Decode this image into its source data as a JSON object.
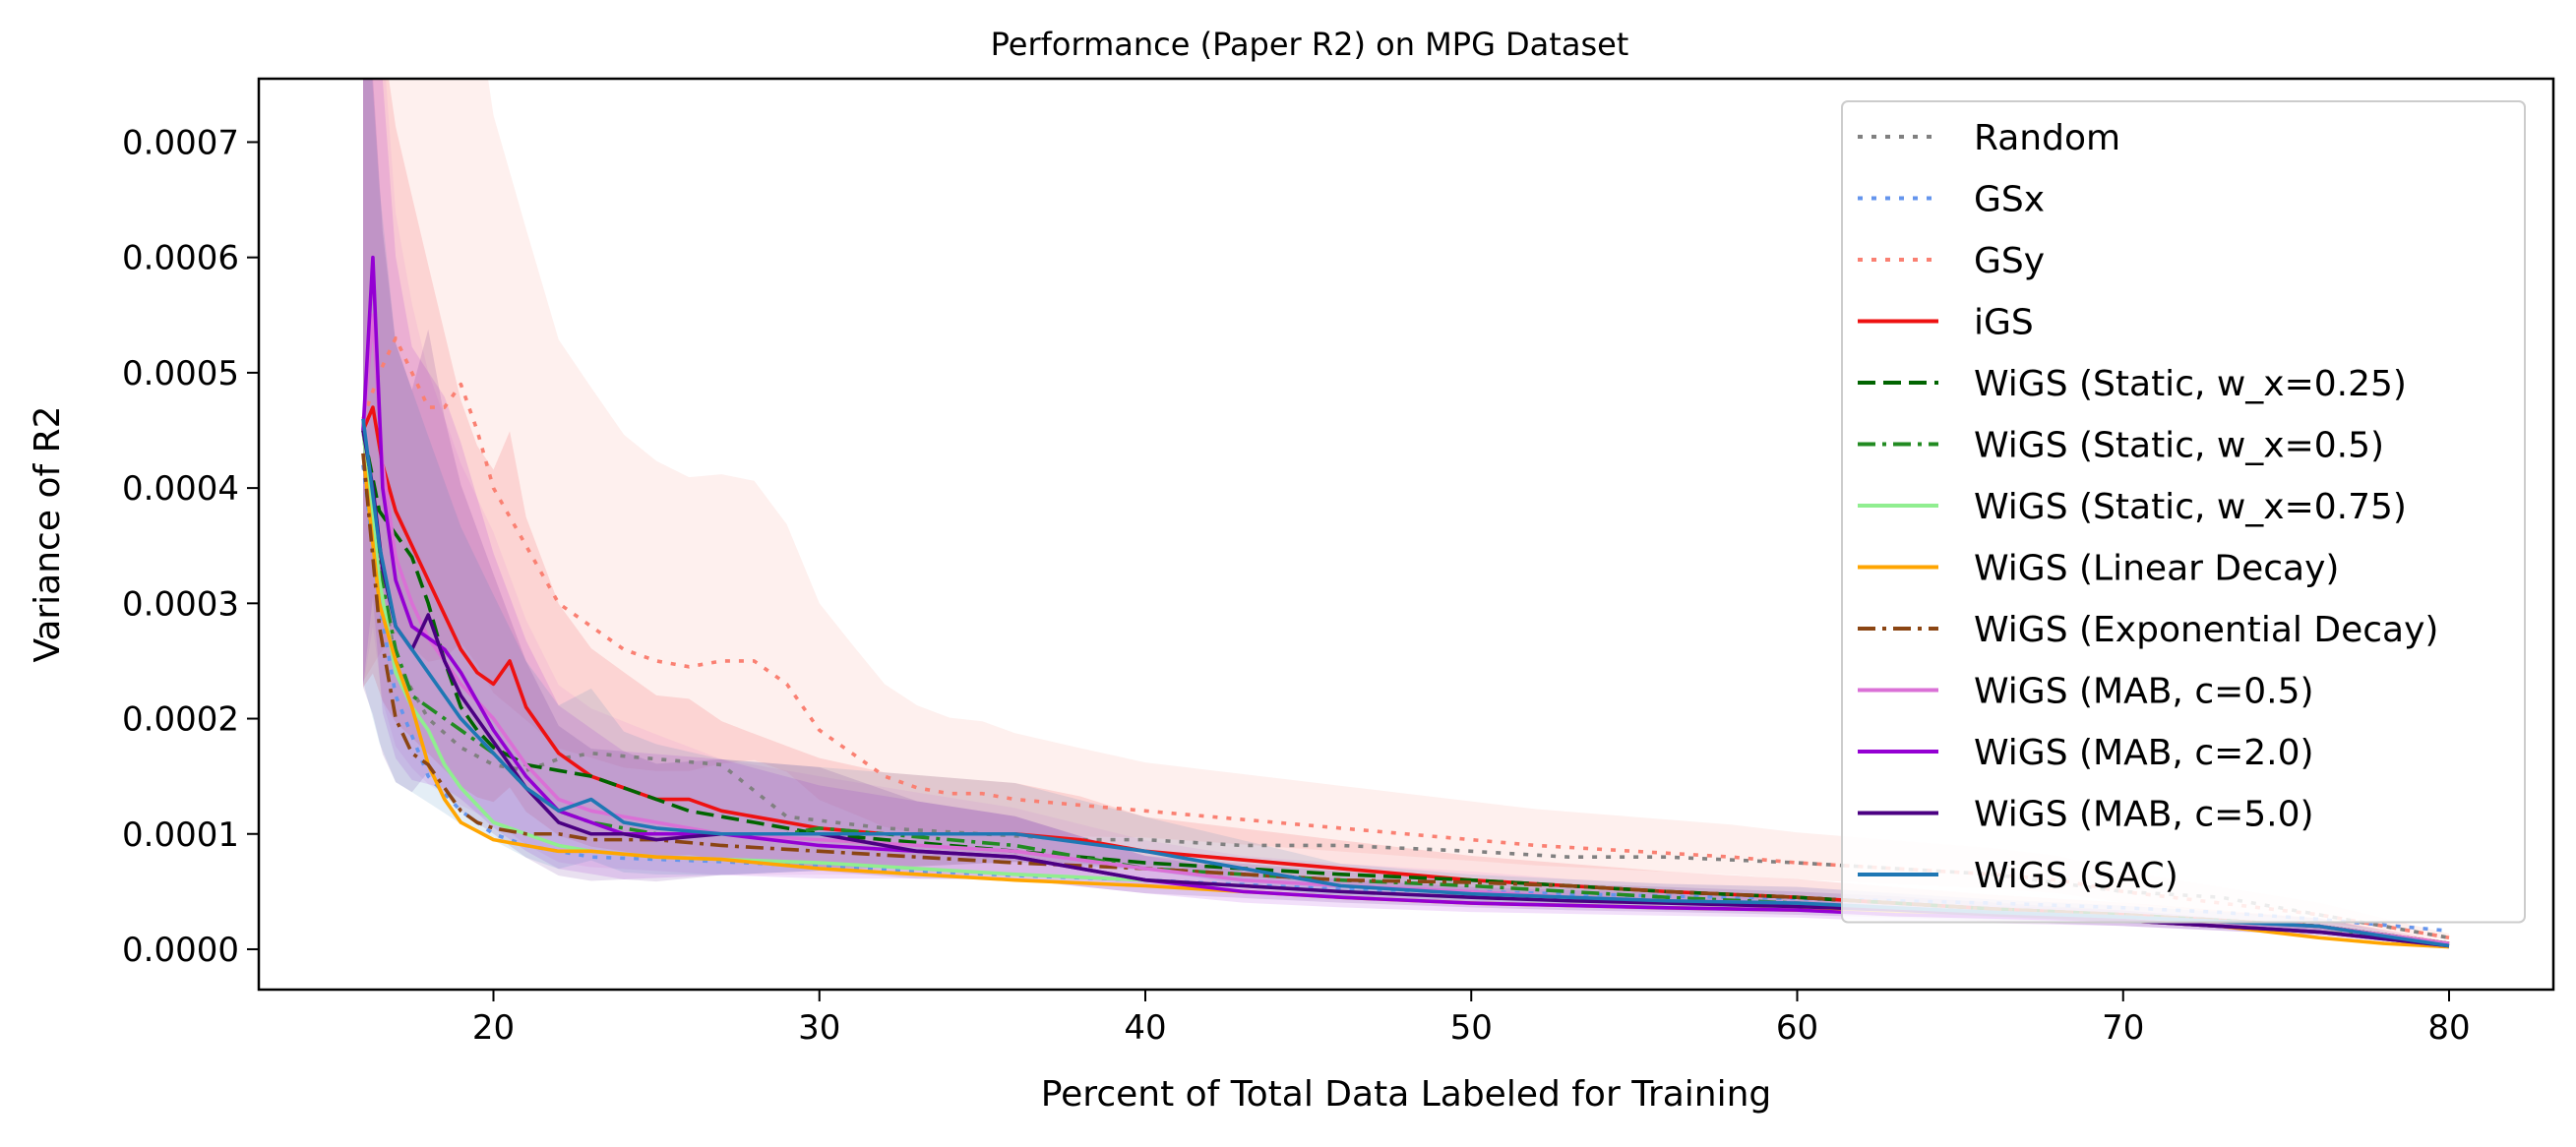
{
  "chart_data": {
    "type": "line",
    "title": "Performance (Paper R2) on MPG Dataset",
    "xlabel": "Percent of Total Data Labeled for Training",
    "ylabel": "Variance of R2",
    "xlim": [
      12.8,
      83.2
    ],
    "ylim": [
      -3.5e-05,
      0.000755
    ],
    "xticks": [
      20,
      30,
      40,
      50,
      60,
      70,
      80
    ],
    "xtick_labels": [
      "20",
      "30",
      "40",
      "50",
      "60",
      "70",
      "80"
    ],
    "yticks": [
      0.0,
      0.0001,
      0.0002,
      0.0003,
      0.0004,
      0.0005,
      0.0006,
      0.0007
    ],
    "ytick_labels": [
      "0.0000",
      "0.0001",
      "0.0002",
      "0.0003",
      "0.0004",
      "0.0005",
      "0.0006",
      "0.0007"
    ],
    "grid": false,
    "legend_position": "top-right",
    "series": [
      {
        "name": "Random",
        "color": "#808080",
        "dash": "dotted",
        "shade": false,
        "x": [
          16,
          16.5,
          17,
          18,
          19,
          20,
          21,
          22,
          23,
          25,
          27,
          29,
          32,
          35,
          38,
          40,
          43,
          46,
          50,
          53,
          56,
          60,
          63,
          66,
          70,
          73,
          76,
          80
        ],
        "y": [
          0.00045,
          0.00033,
          0.00025,
          0.0002,
          0.000175,
          0.00016,
          0.000155,
          0.000165,
          0.00017,
          0.000165,
          0.00016,
          0.000115,
          0.000105,
          0.0001,
          9.5e-05,
          9.5e-05,
          9e-05,
          9e-05,
          8.5e-05,
          8e-05,
          8e-05,
          7.5e-05,
          7e-05,
          6.5e-05,
          5e-05,
          4.5e-05,
          3e-05,
          1e-05
        ]
      },
      {
        "name": "GSx",
        "color": "#6495ed",
        "dash": "dotted",
        "shade": false,
        "x": [
          16,
          16.5,
          17,
          18,
          19,
          20,
          21,
          22,
          23,
          25,
          27,
          30,
          33,
          36,
          40,
          43,
          46,
          50,
          53,
          56,
          60,
          63,
          66,
          70,
          73,
          76,
          80
        ],
        "y": [
          0.00042,
          0.0003,
          0.00022,
          0.00015,
          0.00012,
          0.0001,
          9e-05,
          8.5e-05,
          8e-05,
          7.8e-05,
          7.6e-05,
          7.2e-05,
          6.8e-05,
          6.4e-05,
          6e-05,
          5.6e-05,
          5.2e-05,
          5e-05,
          4.8e-05,
          4.6e-05,
          4.4e-05,
          4.2e-05,
          4e-05,
          3.6e-05,
          3.2e-05,
          2.6e-05,
          1.6e-05
        ]
      },
      {
        "name": "GSy",
        "color": "#fa8072",
        "dash": "dotted",
        "shade": true,
        "x": [
          16,
          16.5,
          17,
          17.5,
          18,
          18.5,
          19,
          19.5,
          20,
          21,
          22,
          23,
          24,
          25,
          26,
          27,
          28,
          29,
          30,
          31,
          32,
          33,
          34,
          35,
          36,
          38,
          40,
          42,
          44,
          46,
          48,
          50,
          52,
          55,
          58,
          60,
          63,
          66,
          68,
          70,
          73,
          76,
          80
        ],
        "y": [
          0.00046,
          0.0005,
          0.00053,
          0.0005,
          0.00047,
          0.00047,
          0.00049,
          0.00045,
          0.0004,
          0.00035,
          0.0003,
          0.00028,
          0.00026,
          0.00025,
          0.000245,
          0.00025,
          0.00025,
          0.00023,
          0.00019,
          0.00017,
          0.00015,
          0.00014,
          0.000135,
          0.000135,
          0.00013,
          0.000125,
          0.00012,
          0.000115,
          0.00011,
          0.000105,
          0.0001,
          9.5e-05,
          9e-05,
          8.5e-05,
          8e-05,
          7.5e-05,
          7e-05,
          6.5e-05,
          6e-05,
          5e-05,
          4e-05,
          3e-05,
          1e-05
        ]
      },
      {
        "name": "iGS",
        "color": "#ee1111",
        "dash": "solid",
        "shade": true,
        "x": [
          16,
          16.3,
          16.6,
          17,
          17.5,
          18,
          18.5,
          19,
          19.5,
          20,
          20.5,
          21,
          22,
          23,
          24,
          25,
          26,
          27,
          28,
          29,
          30,
          32,
          34,
          36,
          38,
          40,
          42,
          44,
          46,
          48,
          50,
          53,
          56,
          60,
          63,
          66,
          70,
          73,
          76,
          80
        ],
        "y": [
          0.00045,
          0.00047,
          0.00042,
          0.00038,
          0.00035,
          0.00032,
          0.00029,
          0.00026,
          0.00024,
          0.00023,
          0.00025,
          0.00021,
          0.00017,
          0.00015,
          0.00014,
          0.00013,
          0.00013,
          0.00012,
          0.000115,
          0.00011,
          0.000105,
          0.0001,
          0.0001,
          0.0001,
          9.5e-05,
          8.5e-05,
          8e-05,
          7.5e-05,
          7e-05,
          6.5e-05,
          6e-05,
          5.5e-05,
          5e-05,
          4.5e-05,
          4e-05,
          3.5e-05,
          3e-05,
          2.5e-05,
          2e-05,
          5e-06
        ]
      },
      {
        "name": "WiGS (Static, w_x=0.25)",
        "color": "#006400",
        "dash": "dashed",
        "shade": false,
        "x": [
          16,
          16.5,
          17,
          17.5,
          18,
          18.5,
          19,
          19.5,
          20,
          21,
          22,
          23,
          24,
          25,
          26,
          27,
          28,
          29,
          30,
          32,
          34,
          36,
          38,
          40,
          43,
          46,
          50,
          53,
          56,
          60,
          63,
          66,
          70,
          73,
          76,
          80
        ],
        "y": [
          0.00045,
          0.00038,
          0.00036,
          0.00034,
          0.0003,
          0.00025,
          0.00021,
          0.00019,
          0.000175,
          0.00016,
          0.000155,
          0.00015,
          0.00014,
          0.00013,
          0.00012,
          0.000115,
          0.00011,
          0.000105,
          0.0001,
          9.5e-05,
          9e-05,
          8.5e-05,
          8e-05,
          7.5e-05,
          7e-05,
          6.5e-05,
          6e-05,
          5.5e-05,
          5e-05,
          4.5e-05,
          4e-05,
          3.5e-05,
          3e-05,
          2.5e-05,
          2e-05,
          5e-06
        ]
      },
      {
        "name": "WiGS (Static, w_x=0.5)",
        "color": "#228b22",
        "dash": "dashdot",
        "shade": false,
        "x": [
          16,
          16.5,
          17,
          17.5,
          18,
          18.5,
          19,
          20,
          21,
          22,
          23,
          25,
          27,
          29,
          30,
          32,
          34,
          36,
          38,
          40,
          43,
          46,
          50,
          53,
          56,
          60,
          63,
          66,
          70,
          73,
          76,
          80
        ],
        "y": [
          0.00045,
          0.00033,
          0.00026,
          0.00022,
          0.00021,
          0.0002,
          0.00019,
          0.00017,
          0.00014,
          0.00012,
          0.00011,
          0.0001,
          0.0001,
          0.0001,
          0.000105,
          0.0001,
          9.5e-05,
          9e-05,
          8e-05,
          7e-05,
          6.5e-05,
          6e-05,
          5.5e-05,
          5e-05,
          4.5e-05,
          4e-05,
          3.5e-05,
          3e-05,
          2.5e-05,
          2e-05,
          1.5e-05,
          5e-06
        ]
      },
      {
        "name": "WiGS (Static, w_x=0.75)",
        "color": "#90ee90",
        "dash": "solid",
        "shade": false,
        "x": [
          16,
          16.5,
          17,
          17.5,
          18,
          18.5,
          19,
          20,
          21,
          22,
          23,
          25,
          27,
          30,
          33,
          36,
          40,
          43,
          46,
          50,
          53,
          56,
          60,
          63,
          66,
          70,
          73,
          76,
          80
        ],
        "y": [
          0.00045,
          0.00032,
          0.00024,
          0.00021,
          0.00019,
          0.00016,
          0.00014,
          0.00011,
          0.0001,
          9e-05,
          8.5e-05,
          8e-05,
          7.8e-05,
          7.5e-05,
          7e-05,
          6.5e-05,
          6e-05,
          5.5e-05,
          5e-05,
          4.5e-05,
          4.2e-05,
          4e-05,
          3.8e-05,
          3.5e-05,
          3e-05,
          2.5e-05,
          2e-05,
          1.5e-05,
          3e-06
        ]
      },
      {
        "name": "WiGS (Linear Decay)",
        "color": "#ffa500",
        "dash": "solid",
        "shade": false,
        "x": [
          16,
          16.5,
          17,
          17.5,
          18,
          18.5,
          19,
          20,
          21,
          22,
          23,
          25,
          27,
          30,
          33,
          36,
          40,
          43,
          46,
          50,
          53,
          56,
          60,
          63,
          66,
          70,
          73,
          76,
          78,
          80
        ],
        "y": [
          0.00043,
          0.0003,
          0.00025,
          0.00021,
          0.00016,
          0.00013,
          0.00011,
          9.5e-05,
          9e-05,
          8.5e-05,
          8.5e-05,
          8e-05,
          7.8e-05,
          7e-05,
          6.5e-05,
          6e-05,
          5.5e-05,
          5e-05,
          4.5e-05,
          4e-05,
          3.8e-05,
          3.6e-05,
          3.4e-05,
          3.2e-05,
          3e-05,
          2.5e-05,
          2e-05,
          1e-05,
          5e-06,
          2e-06
        ]
      },
      {
        "name": "WiGS (Exponential Decay)",
        "color": "#8b4513",
        "dash": "dashdot",
        "shade": false,
        "x": [
          16,
          16.5,
          17,
          17.5,
          18,
          18.5,
          19,
          19.5,
          20,
          21,
          22,
          23,
          25,
          27,
          30,
          33,
          36,
          40,
          43,
          46,
          50,
          53,
          56,
          60,
          63,
          66,
          70,
          73,
          76,
          80
        ],
        "y": [
          0.00043,
          0.00028,
          0.0002,
          0.00017,
          0.00016,
          0.00014,
          0.00012,
          0.00011,
          0.000105,
          0.0001,
          0.0001,
          9.5e-05,
          9.5e-05,
          9e-05,
          8.5e-05,
          8e-05,
          7.5e-05,
          7e-05,
          6.5e-05,
          6e-05,
          5.8e-05,
          5.5e-05,
          5e-05,
          4.5e-05,
          4e-05,
          3.5e-05,
          3e-05,
          2.5e-05,
          2e-05,
          5e-06
        ]
      },
      {
        "name": "WiGS (MAB, c=0.5)",
        "color": "#da70d6",
        "dash": "solid",
        "shade": true,
        "x": [
          16,
          16.3,
          16.6,
          17,
          17.5,
          18,
          18.5,
          19,
          20,
          21,
          22,
          23,
          25,
          27,
          30,
          33,
          36,
          40,
          43,
          46,
          50,
          53,
          56,
          60,
          63,
          66,
          70,
          73,
          76,
          80
        ],
        "y": [
          0.00045,
          0.00055,
          0.00042,
          0.00034,
          0.0003,
          0.00027,
          0.00025,
          0.00023,
          0.0002,
          0.00016,
          0.00013,
          0.00012,
          0.00011,
          0.0001,
          9.5e-05,
          9e-05,
          8.5e-05,
          7e-05,
          6e-05,
          5.5e-05,
          5e-05,
          4.5e-05,
          4.2e-05,
          4e-05,
          3.6e-05,
          3.2e-05,
          2.8e-05,
          2.4e-05,
          2e-05,
          5e-06
        ]
      },
      {
        "name": "WiGS (MAB, c=2.0)",
        "color": "#9400d3",
        "dash": "solid",
        "shade": true,
        "x": [
          16,
          16.3,
          16.6,
          17,
          17.5,
          18,
          18.5,
          19,
          20,
          21,
          22,
          23,
          24,
          25,
          27,
          30,
          33,
          36,
          40,
          43,
          46,
          50,
          53,
          56,
          60,
          63,
          66,
          70,
          73,
          76,
          80
        ],
        "y": [
          0.00045,
          0.0006,
          0.0004,
          0.00032,
          0.00028,
          0.00027,
          0.00026,
          0.00024,
          0.00019,
          0.00015,
          0.00012,
          0.00011,
          0.0001,
          0.0001,
          0.0001,
          9e-05,
          8.5e-05,
          8e-05,
          6e-05,
          5e-05,
          4.5e-05,
          4e-05,
          3.8e-05,
          3.6e-05,
          3.4e-05,
          3e-05,
          2.8e-05,
          2.5e-05,
          2e-05,
          1.5e-05,
          3e-06
        ]
      },
      {
        "name": "WiGS (MAB, c=5.0)",
        "color": "#4b0082",
        "dash": "solid",
        "shade": true,
        "x": [
          16,
          16.3,
          16.6,
          17,
          17.5,
          18,
          18.5,
          19,
          20,
          21,
          22,
          23,
          24,
          25,
          27,
          30,
          33,
          36,
          40,
          43,
          46,
          50,
          53,
          56,
          60,
          63,
          66,
          70,
          73,
          76,
          80
        ],
        "y": [
          0.00045,
          0.0004,
          0.00033,
          0.00028,
          0.00026,
          0.00029,
          0.00025,
          0.00022,
          0.00018,
          0.00014,
          0.00011,
          0.0001,
          0.0001,
          9.5e-05,
          0.0001,
          0.0001,
          8.5e-05,
          8e-05,
          6e-05,
          5.5e-05,
          5e-05,
          4.5e-05,
          4.2e-05,
          4e-05,
          3.7e-05,
          3.4e-05,
          3e-05,
          2.5e-05,
          2e-05,
          1.5e-05,
          3e-06
        ]
      },
      {
        "name": "WiGS (SAC)",
        "color": "#1f77b4",
        "dash": "solid",
        "shade": true,
        "x": [
          16,
          16.5,
          17,
          17.5,
          18,
          18.5,
          19,
          20,
          21,
          22,
          23,
          24,
          25,
          27,
          30,
          33,
          36,
          40,
          43,
          46,
          50,
          53,
          56,
          60,
          63,
          66,
          70,
          73,
          76,
          80
        ],
        "y": [
          0.00046,
          0.00035,
          0.00028,
          0.00026,
          0.00024,
          0.00022,
          0.0002,
          0.00017,
          0.00014,
          0.00012,
          0.00013,
          0.00011,
          0.000105,
          0.0001,
          0.0001,
          0.0001,
          0.0001,
          8.5e-05,
          7e-05,
          5.5e-05,
          4.8e-05,
          4.5e-05,
          4.2e-05,
          4e-05,
          3.6e-05,
          3.2e-05,
          2.8e-05,
          2.4e-05,
          2e-05,
          3e-06
        ]
      }
    ]
  }
}
